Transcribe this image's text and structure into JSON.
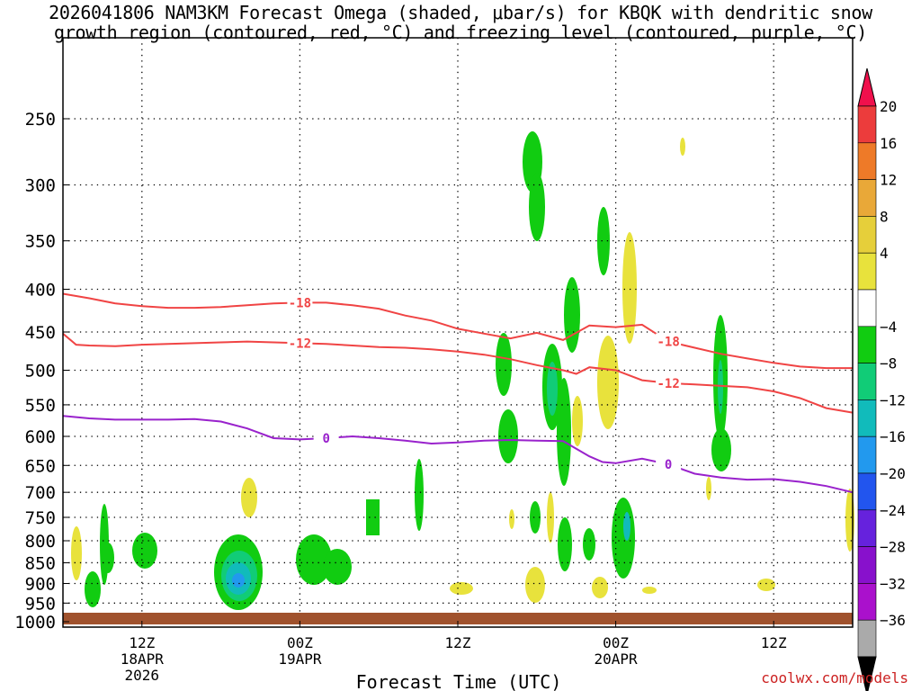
{
  "header": {
    "title_line1": "2026041806 NAM3KM Forecast Omega (shaded, μbar/s) for KBQK with dendritic snow",
    "title_line2": "growth region (contoured, red, °C) and freezing level (contoured, purple, °C)"
  },
  "footer": {
    "credit": "coolwx.com/models"
  },
  "chart_data": {
    "type": "contour",
    "title": "2026041806 NAM3KM Forecast Omega (shaded, μbar/s) for KBQK with dendritic snow growth region (contoured, red, °C) and freezing level (contoured, purple, °C)",
    "xlabel": "Forecast Time (UTC)",
    "ylabel": "",
    "x_unit": "forecast hour since 2026-04-18 06Z",
    "xlim": [
      0,
      60
    ],
    "x_ticks": [
      {
        "x": 6,
        "label": "12Z",
        "sub1": "18APR",
        "sub2": "2026"
      },
      {
        "x": 18,
        "label": "00Z",
        "sub1": "19APR",
        "sub2": ""
      },
      {
        "x": 30,
        "label": "12Z",
        "sub1": "",
        "sub2": ""
      },
      {
        "x": 42,
        "label": "00Z",
        "sub1": "20APR",
        "sub2": ""
      },
      {
        "x": 54,
        "label": "12Z",
        "sub1": "",
        "sub2": ""
      }
    ],
    "y_scale": "log",
    "y_ticks": [
      250,
      300,
      350,
      400,
      450,
      500,
      550,
      600,
      650,
      700,
      750,
      800,
      850,
      900,
      950,
      1000
    ],
    "ylim": [
      1015,
      200
    ],
    "grid": true,
    "colorbar": {
      "labels": [
        "20",
        "16",
        "12",
        "8",
        "4",
        "−4",
        "−8",
        "−12",
        "−16",
        "−20",
        "−24",
        "−28",
        "−32",
        "−36"
      ],
      "colors": [
        "#f0104c",
        "#ec3c3c",
        "#ee7a28",
        "#e9a838",
        "#e6cf3a",
        "#e8e23c",
        "#ffffff",
        "#11cc11",
        "#11cc77",
        "#11bbbb",
        "#2299ee",
        "#2255ee",
        "#6622dd",
        "#8811cc",
        "#aa11cc",
        "#aaaaaa",
        "#000000"
      ]
    },
    "series": [
      {
        "name": "-18",
        "color": "#f04444",
        "x": [
          0,
          2,
          4,
          6,
          8,
          10,
          12,
          14,
          16,
          18,
          20,
          22,
          24,
          26,
          28,
          30,
          32,
          34,
          36,
          38,
          40,
          42,
          44,
          46,
          48,
          50,
          52,
          54,
          56,
          58,
          60
        ],
        "y": [
          405,
          410,
          416,
          419,
          421,
          421,
          420,
          418,
          416,
          415,
          415,
          418,
          422,
          430,
          436,
          446,
          452,
          458,
          451,
          460,
          442,
          444,
          441,
          462,
          470,
          478,
          484,
          490,
          495,
          497,
          497
        ]
      },
      {
        "name": "-12",
        "color": "#f04444",
        "x": [
          0,
          1,
          2,
          4,
          6,
          8,
          10,
          12,
          14,
          16,
          18,
          20,
          22,
          24,
          26,
          28,
          30,
          32,
          34,
          36,
          38,
          39,
          40,
          42,
          44,
          46,
          48,
          50,
          52,
          54,
          56,
          58,
          60
        ],
        "y": [
          452,
          466,
          467,
          468,
          466,
          465,
          464,
          463,
          462,
          463,
          464,
          465,
          467,
          469,
          470,
          472,
          475,
          479,
          485,
          493,
          500,
          505,
          496,
          500,
          514,
          518,
          520,
          522,
          524,
          530,
          540,
          555,
          562
        ]
      },
      {
        "name": "0",
        "color": "#9922cc",
        "x": [
          0,
          2,
          4,
          6,
          8,
          10,
          12,
          14,
          16,
          18,
          20,
          22,
          24,
          26,
          28,
          30,
          32,
          34,
          36,
          38,
          40,
          41,
          42,
          44,
          46,
          48,
          50,
          52,
          54,
          56,
          58,
          60
        ],
        "y": [
          567,
          571,
          573,
          573,
          573,
          572,
          576,
          587,
          603,
          605,
          603,
          600,
          603,
          607,
          612,
          610,
          607,
          606,
          607,
          608,
          634,
          644,
          646,
          638,
          648,
          665,
          672,
          676,
          675,
          680,
          688,
          700
        ]
      }
    ],
    "omega_shading_ranges": [
      "green: -4 to -8",
      "teal: -8 to -12",
      "cyan: -12 to -16",
      "blue: -16 to -20",
      "yellow: 4 to 8"
    ]
  }
}
